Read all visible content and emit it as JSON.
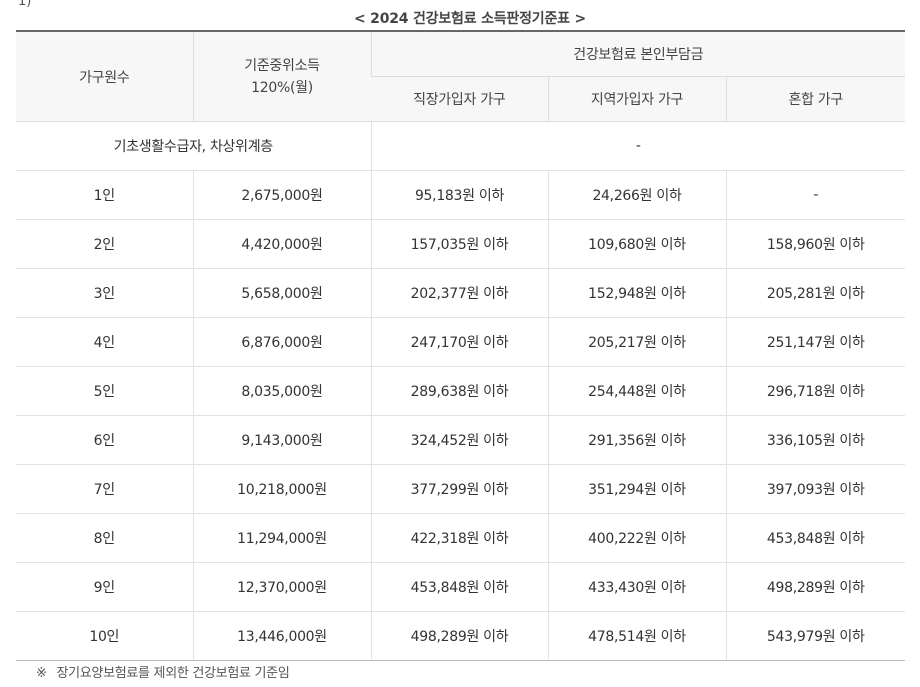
{
  "caption": "< 2024 건강보험료 소득판정기준표 >",
  "top_fragment": "1)",
  "table": {
    "headers": {
      "household": "가구원수",
      "income_line1": "기준중위소득",
      "income_line2": "120%(월)",
      "premium_group": "건강보험료 본인부담금",
      "employee": "직장가입자 가구",
      "regional": "지역가입자 가구",
      "mixed": "혼합 가구"
    },
    "special_row": {
      "label": "기초생활수급자, 차상위계층",
      "value": "-"
    },
    "rows": [
      {
        "household": "1인",
        "income": "2,675,000원",
        "employee": "95,183원 이하",
        "regional": "24,266원 이하",
        "mixed": "-"
      },
      {
        "household": "2인",
        "income": "4,420,000원",
        "employee": "157,035원 이하",
        "regional": "109,680원 이하",
        "mixed": "158,960원 이하"
      },
      {
        "household": "3인",
        "income": "5,658,000원",
        "employee": "202,377원 이하",
        "regional": "152,948원 이하",
        "mixed": "205,281원 이하"
      },
      {
        "household": "4인",
        "income": "6,876,000원",
        "employee": "247,170원 이하",
        "regional": "205,217원 이하",
        "mixed": "251,147원 이하"
      },
      {
        "household": "5인",
        "income": "8,035,000원",
        "employee": "289,638원 이하",
        "regional": "254,448원 이하",
        "mixed": "296,718원 이하"
      },
      {
        "household": "6인",
        "income": "9,143,000원",
        "employee": "324,452원 이하",
        "regional": "291,356원 이하",
        "mixed": "336,105원 이하"
      },
      {
        "household": "7인",
        "income": "10,218,000원",
        "employee": "377,299원 이하",
        "regional": "351,294원 이하",
        "mixed": "397,093원 이하"
      },
      {
        "household": "8인",
        "income": "11,294,000원",
        "employee": "422,318원 이하",
        "regional": "400,222원 이하",
        "mixed": "453,848원 이하"
      },
      {
        "household": "9인",
        "income": "12,370,000원",
        "employee": "453,848원 이하",
        "regional": "433,430원 이하",
        "mixed": "498,289원 이하"
      },
      {
        "household": "10인",
        "income": "13,446,000원",
        "employee": "498,289원 이하",
        "regional": "478,514원 이하",
        "mixed": "543,979원 이하"
      }
    ]
  },
  "footnote": {
    "mark": "※",
    "text": "장기요양보험료를 제외한 건강보험료 기준임"
  }
}
